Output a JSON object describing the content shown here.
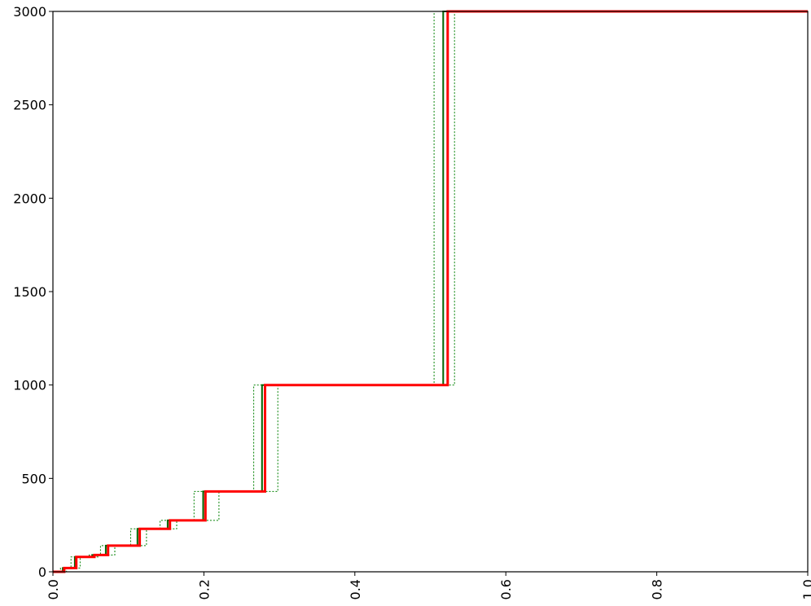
{
  "chart_data": {
    "type": "line",
    "title": "",
    "xlabel": "",
    "ylabel": "",
    "xlim": [
      0,
      1
    ],
    "ylim": [
      0,
      3000
    ],
    "grid": false,
    "legend": "none",
    "x_ticks": [
      0.0,
      0.2,
      0.4,
      0.6,
      0.8,
      1.0
    ],
    "x_tick_labels": [
      "0.0",
      "0.2",
      "0.4",
      "0.6",
      "0.8",
      "1.0"
    ],
    "x_tick_rotation": "vertical",
    "y_ticks": [
      0,
      500,
      1000,
      1500,
      2000,
      2500,
      3000
    ],
    "y_tick_labels": [
      "0",
      "500",
      "1000",
      "1500",
      "2000",
      "2500",
      "3000"
    ],
    "series": [
      {
        "style": "dotted-band-lower",
        "color": "#008000",
        "step": "post",
        "x": [
          0.0,
          0.01,
          0.024,
          0.048,
          0.063,
          0.103,
          0.142,
          0.187,
          0.266,
          0.505,
          1.0
        ],
        "y": [
          0,
          20,
          80,
          90,
          140,
          230,
          275,
          430,
          1000,
          3000,
          3000
        ]
      },
      {
        "style": "dotted-band-upper",
        "color": "#008000",
        "step": "post",
        "x": [
          0.0,
          0.018,
          0.036,
          0.06,
          0.082,
          0.124,
          0.164,
          0.22,
          0.298,
          0.532,
          1.0
        ],
        "y": [
          0,
          20,
          80,
          90,
          140,
          230,
          275,
          430,
          1000,
          3000,
          3000
        ]
      },
      {
        "style": "solid-mid",
        "color": "#006400",
        "step": "post",
        "x": [
          0.0,
          0.013,
          0.029,
          0.052,
          0.07,
          0.112,
          0.152,
          0.199,
          0.277,
          0.517,
          1.0
        ],
        "y": [
          0,
          20,
          80,
          90,
          140,
          230,
          275,
          430,
          1000,
          3000,
          3000
        ]
      },
      {
        "style": "solid-main",
        "color": "#ff0000",
        "step": "post",
        "x": [
          0.0,
          0.015,
          0.031,
          0.055,
          0.073,
          0.115,
          0.155,
          0.202,
          0.281,
          0.523,
          1.0
        ],
        "y": [
          0,
          20,
          80,
          90,
          140,
          230,
          275,
          430,
          1000,
          3000,
          3000
        ]
      }
    ]
  }
}
